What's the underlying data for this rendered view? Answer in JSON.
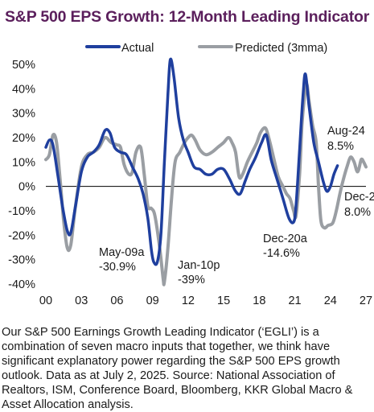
{
  "title": "S&P 500 EPS Growth: 12-Month Leading Indicator",
  "footnote": "Our S&P 500 Earnings Growth Leading Indicator (‘EGLI’) is a combination of seven macro inputs that together, we think have significant explanatory power regarding the S&P 500 EPS growth outlook. Data as at July 2, 2025. Source: National Association of Realtors, ISM, Conference Board, Bloomberg, KKR Global Macro & Asset Allocation analysis.",
  "colors": {
    "actual": "#1f3f9e",
    "predicted": "#9a9ea3",
    "title": "#5b1f5c"
  },
  "chart_data": {
    "type": "line",
    "xlim": [
      2000,
      2027
    ],
    "ylim": [
      -40,
      50
    ],
    "x_ticks": [
      {
        "value": 2000,
        "label": "00"
      },
      {
        "value": 2003,
        "label": "03"
      },
      {
        "value": 2006,
        "label": "06"
      },
      {
        "value": 2009,
        "label": "09"
      },
      {
        "value": 2012,
        "label": "12"
      },
      {
        "value": 2015,
        "label": "15"
      },
      {
        "value": 2018,
        "label": "18"
      },
      {
        "value": 2021,
        "label": "21"
      },
      {
        "value": 2024,
        "label": "24"
      },
      {
        "value": 2027,
        "label": "27"
      }
    ],
    "y_ticks": [
      {
        "value": 50,
        "label": "50%"
      },
      {
        "value": 40,
        "label": "40%"
      },
      {
        "value": 30,
        "label": "30%"
      },
      {
        "value": 20,
        "label": "20%"
      },
      {
        "value": 10,
        "label": "10%"
      },
      {
        "value": 0,
        "label": "0%"
      },
      {
        "value": -10,
        "label": "-10%"
      },
      {
        "value": -20,
        "label": "-20%"
      },
      {
        "value": -30,
        "label": "-30%"
      },
      {
        "value": -40,
        "label": "-40%"
      }
    ],
    "legend": {
      "placement": "top"
    },
    "series": [
      {
        "name": "Actual",
        "points": [
          [
            2000.0,
            16
          ],
          [
            2000.3,
            19
          ],
          [
            2000.6,
            17
          ],
          [
            2001.0,
            5
          ],
          [
            2001.4,
            -8
          ],
          [
            2001.8,
            -18
          ],
          [
            2002.1,
            -19
          ],
          [
            2002.5,
            -8
          ],
          [
            2003.0,
            6
          ],
          [
            2003.5,
            12
          ],
          [
            2004.0,
            14
          ],
          [
            2004.5,
            17
          ],
          [
            2005.0,
            23
          ],
          [
            2005.4,
            22
          ],
          [
            2005.8,
            16
          ],
          [
            2006.3,
            14
          ],
          [
            2006.8,
            13
          ],
          [
            2007.3,
            8
          ],
          [
            2007.8,
            3
          ],
          [
            2008.2,
            -3
          ],
          [
            2008.6,
            -13
          ],
          [
            2008.9,
            -26
          ],
          [
            2009.1,
            -30.9
          ],
          [
            2009.4,
            -31
          ],
          [
            2009.7,
            -20
          ],
          [
            2010.0,
            10
          ],
          [
            2010.3,
            38
          ],
          [
            2010.5,
            52
          ],
          [
            2010.8,
            45
          ],
          [
            2011.2,
            28
          ],
          [
            2011.6,
            19
          ],
          [
            2012.0,
            14
          ],
          [
            2012.5,
            8
          ],
          [
            2013.0,
            7
          ],
          [
            2013.5,
            5
          ],
          [
            2014.0,
            5
          ],
          [
            2014.5,
            7
          ],
          [
            2015.0,
            7
          ],
          [
            2015.5,
            3
          ],
          [
            2016.0,
            -2
          ],
          [
            2016.4,
            -3
          ],
          [
            2016.8,
            2
          ],
          [
            2017.2,
            7
          ],
          [
            2017.7,
            12
          ],
          [
            2018.2,
            18
          ],
          [
            2018.6,
            21
          ],
          [
            2019.0,
            11
          ],
          [
            2019.5,
            3
          ],
          [
            2020.0,
            -5
          ],
          [
            2020.5,
            -13
          ],
          [
            2020.9,
            -14.6
          ],
          [
            2021.1,
            -8
          ],
          [
            2021.4,
            15
          ],
          [
            2021.7,
            38
          ],
          [
            2021.9,
            46
          ],
          [
            2022.2,
            33
          ],
          [
            2022.6,
            18
          ],
          [
            2023.0,
            10
          ],
          [
            2023.4,
            2
          ],
          [
            2023.7,
            -2
          ],
          [
            2024.0,
            0
          ],
          [
            2024.3,
            5
          ],
          [
            2024.6,
            8.5
          ]
        ]
      },
      {
        "name": "Predicted (3mma)",
        "points": [
          [
            2000.0,
            11
          ],
          [
            2000.3,
            13
          ],
          [
            2000.6,
            21
          ],
          [
            2000.9,
            18
          ],
          [
            2001.2,
            3
          ],
          [
            2001.5,
            -14
          ],
          [
            2001.8,
            -25
          ],
          [
            2002.1,
            -24
          ],
          [
            2002.5,
            -8
          ],
          [
            2003.0,
            8
          ],
          [
            2003.5,
            13
          ],
          [
            2004.0,
            14
          ],
          [
            2004.5,
            16
          ],
          [
            2005.0,
            20
          ],
          [
            2005.5,
            18
          ],
          [
            2006.0,
            17
          ],
          [
            2006.3,
            16
          ],
          [
            2006.6,
            9
          ],
          [
            2007.0,
            5
          ],
          [
            2007.3,
            6
          ],
          [
            2007.6,
            14
          ],
          [
            2008.0,
            16
          ],
          [
            2008.3,
            5
          ],
          [
            2008.6,
            -8
          ],
          [
            2008.9,
            -9
          ],
          [
            2009.2,
            -12
          ],
          [
            2009.6,
            -25
          ],
          [
            2009.9,
            -38
          ],
          [
            2010.0,
            -39
          ],
          [
            2010.3,
            -25
          ],
          [
            2010.6,
            -5
          ],
          [
            2010.9,
            10
          ],
          [
            2011.3,
            14
          ],
          [
            2011.7,
            18
          ],
          [
            2012.0,
            20
          ],
          [
            2012.3,
            21
          ],
          [
            2012.6,
            19
          ],
          [
            2013.0,
            15
          ],
          [
            2013.5,
            13
          ],
          [
            2014.0,
            14
          ],
          [
            2014.5,
            16
          ],
          [
            2015.0,
            18
          ],
          [
            2015.4,
            20
          ],
          [
            2015.7,
            18
          ],
          [
            2016.0,
            14
          ],
          [
            2016.3,
            4
          ],
          [
            2016.6,
            5
          ],
          [
            2017.0,
            10
          ],
          [
            2017.4,
            14
          ],
          [
            2017.8,
            18
          ],
          [
            2018.1,
            22
          ],
          [
            2018.5,
            24
          ],
          [
            2018.8,
            20
          ],
          [
            2019.2,
            12
          ],
          [
            2019.6,
            4
          ],
          [
            2020.0,
            0
          ],
          [
            2020.3,
            -3
          ],
          [
            2020.6,
            -5
          ],
          [
            2020.9,
            -10
          ],
          [
            2021.1,
            -12
          ],
          [
            2021.4,
            5
          ],
          [
            2021.6,
            25
          ],
          [
            2021.8,
            36
          ],
          [
            2022.0,
            42
          ],
          [
            2022.2,
            35
          ],
          [
            2022.5,
            25
          ],
          [
            2022.8,
            18
          ],
          [
            2023.0,
            0
          ],
          [
            2023.2,
            -14
          ],
          [
            2023.5,
            -17
          ],
          [
            2023.8,
            -16
          ],
          [
            2024.2,
            -15
          ],
          [
            2024.5,
            -10
          ],
          [
            2024.8,
            -3
          ],
          [
            2025.1,
            3
          ],
          [
            2025.4,
            8
          ],
          [
            2025.7,
            12
          ],
          [
            2026.0,
            10
          ],
          [
            2026.3,
            6
          ],
          [
            2026.6,
            11
          ],
          [
            2026.8,
            10
          ],
          [
            2027.0,
            8
          ]
        ]
      }
    ],
    "annotations": [
      {
        "text": "May-09a",
        "x": 2009.2,
        "y": -30.9
      },
      {
        "text": "-30.9%",
        "x": 2009.2,
        "y": -30.9
      },
      {
        "text": "Jan-10p",
        "x": 2010.0,
        "y": -39
      },
      {
        "text": "-39%",
        "x": 2010.0,
        "y": -39
      },
      {
        "text": "Dec-20a",
        "x": 2020.9,
        "y": -14.6
      },
      {
        "text": "-14.6%",
        "x": 2020.9,
        "y": -14.6
      },
      {
        "text": "Aug-24",
        "x": 2024.6,
        "y": 8.5
      },
      {
        "text": "8.5%",
        "x": 2024.6,
        "y": 8.5
      },
      {
        "text": "Dec-2",
        "x": 2026.9,
        "y": 8.0
      },
      {
        "text": "8.0%",
        "x": 2026.9,
        "y": 8.0
      }
    ]
  }
}
